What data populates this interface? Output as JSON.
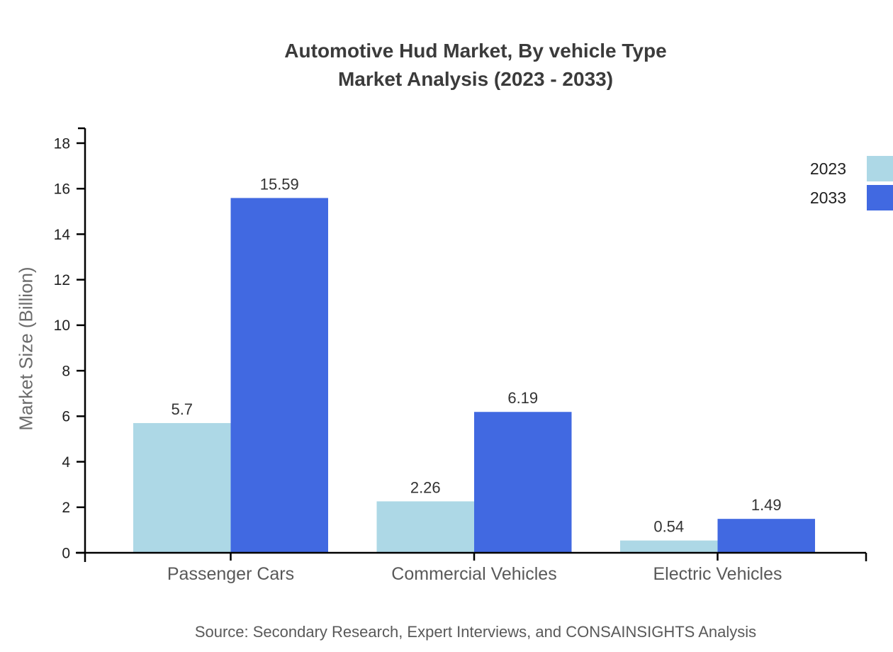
{
  "title": {
    "line1": "Automotive Hud Market, By vehicle Type",
    "line2": "Market Analysis (2023 - 2033)"
  },
  "source": "Source: Secondary Research, Expert Interviews, and CONSAINSIGHTS Analysis",
  "legend": [
    {
      "label": "2023",
      "color": "#ADD8E6"
    },
    {
      "label": "2033",
      "color": "#4169E1"
    }
  ],
  "colors": {
    "series_2023": "#ADD8E6",
    "series_2033": "#4169E1",
    "axis": "#000000",
    "tick_label": "#1f1f1f",
    "value_label": "#333333",
    "category_label": "#595959",
    "title": "#3b3b3b",
    "muted_text": "#6b6b6b"
  },
  "chart_data": {
    "type": "bar",
    "title": "Automotive Hud Market, By vehicle Type — Market Analysis (2023 - 2033)",
    "categories": [
      "Passenger Cars",
      "Commercial Vehicles",
      "Electric Vehicles"
    ],
    "series": [
      {
        "name": "2023",
        "color": "#ADD8E6",
        "values": [
          5.7,
          2.26,
          0.54
        ]
      },
      {
        "name": "2033",
        "color": "#4169E1",
        "values": [
          15.59,
          6.19,
          1.49
        ]
      }
    ],
    "value_labels": {
      "2023": [
        "5.7",
        "2.26",
        "0.54"
      ],
      "2033": [
        "15.59",
        "6.19",
        "1.49"
      ]
    },
    "xlabel": "",
    "ylabel": "Market Size (Billion)",
    "ylim": [
      0,
      18
    ],
    "ytick_step": 2,
    "yticks": [
      0,
      2,
      4,
      6,
      8,
      10,
      12,
      14,
      16,
      18
    ],
    "grid": false,
    "legend_position": "top-right"
  }
}
